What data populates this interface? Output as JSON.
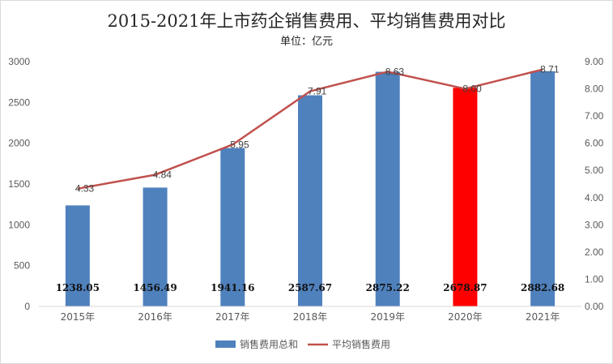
{
  "chart_data": {
    "type": "bar",
    "title": "2015-2021年上市药企销售费用、平均销售费用对比",
    "subtitle": "单位：亿元",
    "categories": [
      "2015年",
      "2016年",
      "2017年",
      "2018年",
      "2019年",
      "2020年",
      "2021年"
    ],
    "series": [
      {
        "name": "销售费用总和",
        "type": "bar",
        "axis": "left",
        "color": "#4f81bd",
        "highlight": {
          "index": 5,
          "color": "#ff0000"
        },
        "values": [
          1238.05,
          1456.49,
          1941.16,
          2587.67,
          2875.22,
          2678.87,
          2882.68
        ],
        "labels": [
          "1238.05",
          "1456.49",
          "1941.16",
          "2587.67",
          "2875.22",
          "2678.87",
          "2882.68"
        ]
      },
      {
        "name": "平均销售费用",
        "type": "line",
        "axis": "right",
        "color": "#c0504d",
        "values": [
          4.33,
          4.84,
          5.95,
          7.91,
          8.63,
          8.0,
          8.71
        ],
        "labels": [
          "4.33",
          "4.84",
          "5.95",
          "7.91",
          "8.63",
          "8.00",
          "8.71"
        ]
      }
    ],
    "y_left": {
      "min": 0,
      "max": 3000,
      "ticks": [
        "0",
        "500",
        "1000",
        "1500",
        "2000",
        "2500",
        "3000"
      ]
    },
    "y_right": {
      "min": 0,
      "max": 9,
      "ticks": [
        "0.00",
        "1.00",
        "2.00",
        "3.00",
        "4.00",
        "5.00",
        "6.00",
        "7.00",
        "8.00",
        "9.00"
      ]
    },
    "grid": false,
    "legend": "bottom"
  }
}
